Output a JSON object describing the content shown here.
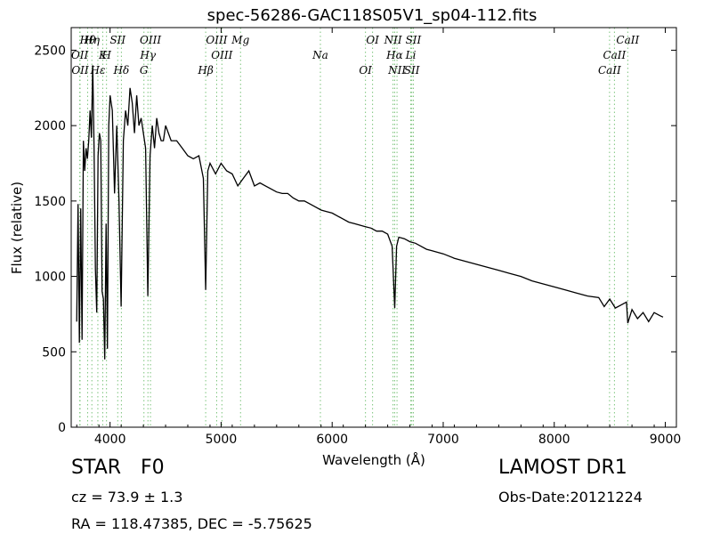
{
  "chart_data": {
    "type": "line",
    "title": "spec-56286-GAC118S05V1_sp04-112.fits",
    "xlabel": "Wavelength (Å)",
    "ylabel": "Flux (relative)",
    "xlim": [
      3650,
      9100
    ],
    "ylim": [
      0,
      2650
    ],
    "xticks": [
      4000,
      5000,
      6000,
      7000,
      8000,
      9000
    ],
    "yticks": [
      0,
      500,
      1000,
      1500,
      2000,
      2500
    ],
    "grid": false,
    "series": [
      {
        "line_color": "#000000",
        "x": [
          3700,
          3712,
          3724,
          3736,
          3748,
          3760,
          3772,
          3784,
          3796,
          3808,
          3820,
          3832,
          3844,
          3856,
          3868,
          3880,
          3892,
          3904,
          3916,
          3928,
          3940,
          3952,
          3964,
          3976,
          3988,
          4000,
          4020,
          4040,
          4060,
          4080,
          4100,
          4120,
          4140,
          4160,
          4180,
          4200,
          4220,
          4240,
          4260,
          4280,
          4300,
          4320,
          4340,
          4360,
          4380,
          4400,
          4420,
          4440,
          4460,
          4480,
          4500,
          4550,
          4600,
          4650,
          4700,
          4750,
          4800,
          4840,
          4861,
          4880,
          4900,
          4950,
          5000,
          5050,
          5100,
          5150,
          5200,
          5250,
          5300,
          5350,
          5400,
          5450,
          5500,
          5550,
          5600,
          5650,
          5700,
          5750,
          5800,
          5850,
          5900,
          5950,
          6000,
          6050,
          6100,
          6150,
          6200,
          6250,
          6300,
          6350,
          6400,
          6450,
          6500,
          6540,
          6563,
          6580,
          6600,
          6650,
          6700,
          6750,
          6800,
          6850,
          6900,
          6950,
          7000,
          7100,
          7200,
          7300,
          7400,
          7500,
          7600,
          7700,
          7800,
          7900,
          8000,
          8100,
          8200,
          8300,
          8400,
          8450,
          8500,
          8550,
          8600,
          8650,
          8662,
          8700,
          8750,
          8800,
          8850,
          8900,
          8950,
          8980
        ],
        "y": [
          700,
          1480,
          560,
          1450,
          580,
          1900,
          1700,
          1850,
          1780,
          1900,
          2100,
          1920,
          2400,
          1850,
          1050,
          760,
          1800,
          1950,
          1900,
          900,
          850,
          450,
          1350,
          520,
          2000,
          2200,
          2100,
          1550,
          2000,
          1500,
          800,
          1900,
          2100,
          2000,
          2250,
          2150,
          1950,
          2200,
          2000,
          2050,
          1950,
          1850,
          870,
          1800,
          2000,
          1850,
          2050,
          1950,
          1900,
          1900,
          2000,
          1900,
          1900,
          1850,
          1800,
          1780,
          1800,
          1650,
          910,
          1700,
          1750,
          1680,
          1750,
          1700,
          1680,
          1600,
          1650,
          1700,
          1600,
          1620,
          1600,
          1580,
          1560,
          1550,
          1550,
          1520,
          1500,
          1500,
          1480,
          1460,
          1440,
          1430,
          1420,
          1400,
          1380,
          1360,
          1350,
          1340,
          1330,
          1320,
          1300,
          1300,
          1280,
          1200,
          790,
          1200,
          1260,
          1250,
          1230,
          1220,
          1200,
          1180,
          1170,
          1160,
          1150,
          1120,
          1100,
          1080,
          1060,
          1040,
          1020,
          1000,
          970,
          950,
          930,
          910,
          890,
          870,
          860,
          800,
          850,
          790,
          810,
          830,
          690,
          780,
          720,
          760,
          700,
          760,
          740,
          730
        ]
      }
    ],
    "line_annotations_top": [
      {
        "label": "Hθ",
        "x": 3798
      },
      {
        "label": "OII",
        "x": 3727
      },
      {
        "label": "OII",
        "x": 3730
      },
      {
        "label": "Hη",
        "x": 3836
      },
      {
        "label": "K",
        "x": 3934
      },
      {
        "label": "Hε",
        "x": 3890
      },
      {
        "label": "SII",
        "x": 4069
      },
      {
        "label": "H",
        "x": 3968
      },
      {
        "label": "Hδ",
        "x": 4102
      },
      {
        "label": "OIII",
        "x": 4364
      },
      {
        "label": "Hγ",
        "x": 4341
      },
      {
        "label": "G",
        "x": 4305
      },
      {
        "label": "OIII",
        "x": 4960
      },
      {
        "label": "OIII",
        "x": 5007
      },
      {
        "label": "Hβ",
        "x": 4861
      },
      {
        "label": "Mg",
        "x": 5175
      },
      {
        "label": "Na",
        "x": 5894
      },
      {
        "label": "OI",
        "x": 6300
      },
      {
        "label": "OI",
        "x": 6364
      },
      {
        "label": "Hα",
        "x": 6563
      },
      {
        "label": "SII",
        "x": 6717
      },
      {
        "label": "NII",
        "x": 6548
      },
      {
        "label": "Li",
        "x": 6708
      },
      {
        "label": "NII",
        "x": 6584
      },
      {
        "label": "SII",
        "x": 6731
      },
      {
        "label": "CaII",
        "x": 8542
      },
      {
        "label": "CaII",
        "x": 8498
      },
      {
        "label": "CaII",
        "x": 8662
      }
    ]
  },
  "footer": {
    "object_class": "STAR",
    "subclass": "F0",
    "survey": "LAMOST DR1",
    "redshift_text": "cz = 73.9  ± 1.3",
    "obs_date": "Obs-Date:20121224",
    "coords": "RA = 118.47385, DEC = -5.75625"
  },
  "colors": {
    "spectrum_line": "#000000",
    "marker_line": "#7cc47c",
    "axes": "#000000"
  }
}
